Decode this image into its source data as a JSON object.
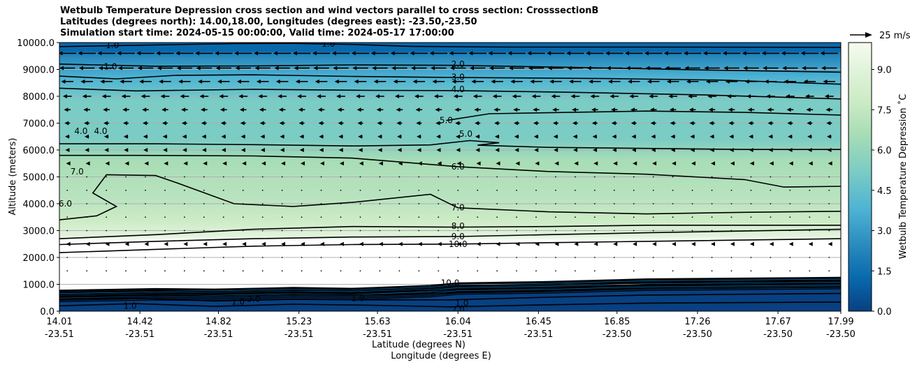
{
  "title": {
    "line1": "Wetbulb Temperature Depression cross section and wind vectors parallel to cross section: CrosssectionB",
    "line2": "Latitudes (degrees north): 14.00,18.00, Longitudes (degrees east): -23.50,-23.50",
    "line3": "Simulation start time: 2024-05-15 00:00:00, Valid time: 2024-05-17 17:00:00"
  },
  "chart_data": {
    "type": "heatmap",
    "title": "Wetbulb Temperature Depression cross section and wind vectors parallel to cross section: CrosssectionB",
    "ylabel": "Altitude (meters)",
    "xlabel": "Latitude (degrees N)",
    "xlabel2": "Longitude (degrees E)",
    "ylim": [
      0,
      10000
    ],
    "xlim": [
      14.01,
      17.99
    ],
    "y_ticks": [
      "0.0",
      "1000.0",
      "2000.0",
      "3000.0",
      "4000.0",
      "5000.0",
      "6000.0",
      "7000.0",
      "8000.0",
      "9000.0",
      "10000.0"
    ],
    "y_tick_values": [
      0,
      1000,
      2000,
      3000,
      4000,
      5000,
      6000,
      7000,
      8000,
      9000,
      10000
    ],
    "x_tick_values": [
      14.01,
      14.42,
      14.82,
      15.23,
      15.63,
      16.04,
      16.45,
      16.85,
      17.26,
      17.67,
      17.99
    ],
    "x_ticks_lat": [
      "14.01",
      "14.42",
      "14.82",
      "15.23",
      "15.63",
      "16.04",
      "16.45",
      "16.85",
      "17.26",
      "17.67",
      "17.99"
    ],
    "x_ticks_lon": [
      "-23.51",
      "-23.51",
      "-23.51",
      "-23.51",
      "-23.51",
      "-23.51",
      "-23.51",
      "-23.50",
      "-23.50",
      "-23.50",
      "-23.50"
    ],
    "grid": "horizontal",
    "colorbar": {
      "label": "Wetbulb Temperature Depression ˚C",
      "range": [
        0.0,
        10.0
      ],
      "ticks": [
        "0.0",
        "1.5",
        "3.0",
        "4.5",
        "6.0",
        "7.5",
        "9.0"
      ],
      "tick_values": [
        0.0,
        1.5,
        3.0,
        4.5,
        6.0,
        7.5,
        9.0
      ],
      "colors": [
        "#084081",
        "#0868ac",
        "#2b8cbe",
        "#4eb3d3",
        "#7bccc4",
        "#a8ddb5",
        "#ccebc5",
        "#e0f3db",
        "#f7fcf0"
      ]
    },
    "vector_key": {
      "label": "25 m/s",
      "value": 25
    },
    "contour_levels": [
      1.0,
      2.0,
      3.0,
      4.0,
      5.0,
      6.0,
      7.0,
      8.0,
      9.0,
      10.0
    ],
    "contour_labels": [
      {
        "text": "2.0",
        "lat": 16.04,
        "alt": 9200
      },
      {
        "text": "3.0",
        "lat": 16.04,
        "alt": 8720
      },
      {
        "text": "4.0",
        "lat": 16.04,
        "alt": 8260
      },
      {
        "text": "5.0",
        "lat": 15.98,
        "alt": 7100
      },
      {
        "text": "5.0",
        "lat": 16.08,
        "alt": 6600
      },
      {
        "text": "6.0",
        "lat": 16.04,
        "alt": 5380
      },
      {
        "text": "7.0",
        "lat": 16.04,
        "alt": 3860
      },
      {
        "text": "8.0",
        "lat": 16.04,
        "alt": 3170
      },
      {
        "text": "9.0",
        "lat": 16.04,
        "alt": 2780
      },
      {
        "text": "10.0",
        "lat": 16.04,
        "alt": 2500
      },
      {
        "text": "4.0",
        "lat": 14.12,
        "alt": 6700
      },
      {
        "text": "4.0",
        "lat": 14.22,
        "alt": 6700
      },
      {
        "text": "1.0",
        "lat": 14.28,
        "alt": 9900
      },
      {
        "text": "1.0",
        "lat": 14.27,
        "alt": 9100
      },
      {
        "text": "1.0",
        "lat": 15.38,
        "alt": 9950
      },
      {
        "text": "7.0",
        "lat": 14.1,
        "alt": 5200
      },
      {
        "text": "6.0",
        "lat": 14.04,
        "alt": 4000
      },
      {
        "text": "10.0",
        "lat": 16.0,
        "alt": 1050
      },
      {
        "text": "1.0",
        "lat": 14.37,
        "alt": 200
      },
      {
        "text": "1.0",
        "lat": 14.92,
        "alt": 350
      },
      {
        "text": "3.0",
        "lat": 15.0,
        "alt": 450
      },
      {
        "text": "1.0",
        "lat": 15.53,
        "alt": 480
      },
      {
        "text": "1.0",
        "lat": 16.06,
        "alt": 300
      },
      {
        "text": "2.0",
        "lat": 16.04,
        "alt": 50
      }
    ],
    "contour_lines": [
      {
        "level": "1.0",
        "points": [
          [
            14.01,
            9850
          ],
          [
            14.4,
            9900
          ],
          [
            14.9,
            9960
          ],
          [
            15.2,
            9970
          ],
          [
            15.5,
            9930
          ],
          [
            15.8,
            9860
          ],
          [
            16.3,
            9830
          ],
          [
            17.0,
            9830
          ],
          [
            17.99,
            9820
          ]
        ]
      },
      {
        "level": "2.0",
        "points": [
          [
            14.01,
            9200
          ],
          [
            14.5,
            9120
          ],
          [
            15.0,
            9130
          ],
          [
            15.5,
            9170
          ],
          [
            16.04,
            9150
          ],
          [
            16.6,
            9080
          ],
          [
            17.3,
            8980
          ],
          [
            17.99,
            8900
          ]
        ]
      },
      {
        "level": "3.0",
        "points": [
          [
            14.01,
            8750
          ],
          [
            14.3,
            8650
          ],
          [
            14.6,
            8780
          ],
          [
            15.0,
            8800
          ],
          [
            15.5,
            8740
          ],
          [
            16.04,
            8700
          ],
          [
            16.8,
            8660
          ],
          [
            17.4,
            8600
          ],
          [
            17.99,
            8450
          ]
        ]
      },
      {
        "level": "4.0",
        "points": [
          [
            14.01,
            8300
          ],
          [
            14.4,
            8200
          ],
          [
            15.0,
            8260
          ],
          [
            15.6,
            8220
          ],
          [
            16.04,
            8210
          ],
          [
            16.6,
            8150
          ],
          [
            17.3,
            8050
          ],
          [
            17.99,
            7900
          ]
        ]
      },
      {
        "level": "5.0",
        "points": [
          [
            15.98,
            7100
          ],
          [
            16.2,
            7350
          ],
          [
            16.6,
            7400
          ],
          [
            17.0,
            7450
          ],
          [
            17.5,
            7400
          ],
          [
            17.99,
            7300
          ]
        ]
      },
      {
        "level": "5.0",
        "points": [
          [
            14.01,
            6230
          ],
          [
            14.5,
            6230
          ],
          [
            15.0,
            6200
          ],
          [
            15.5,
            6150
          ],
          [
            15.9,
            6190
          ],
          [
            16.1,
            6350
          ],
          [
            16.25,
            6270
          ],
          [
            16.14,
            6180
          ],
          [
            16.5,
            6100
          ],
          [
            17.0,
            6060
          ],
          [
            17.5,
            6020
          ],
          [
            17.99,
            6020
          ]
        ]
      },
      {
        "level": "6.0",
        "points": [
          [
            14.01,
            5800
          ],
          [
            14.4,
            5800
          ],
          [
            15.0,
            5780
          ],
          [
            15.5,
            5700
          ],
          [
            16.04,
            5380
          ],
          [
            16.5,
            5200
          ],
          [
            17.0,
            5100
          ],
          [
            17.5,
            4900
          ],
          [
            17.7,
            4620
          ],
          [
            17.99,
            4650
          ]
        ]
      },
      {
        "level": "7.0",
        "points": [
          [
            14.01,
            3400
          ],
          [
            14.2,
            3550
          ],
          [
            14.3,
            3900
          ],
          [
            14.18,
            4400
          ],
          [
            14.25,
            5080
          ],
          [
            14.5,
            5050
          ],
          [
            14.6,
            4800
          ],
          [
            14.9,
            4000
          ],
          [
            15.2,
            3900
          ],
          [
            15.5,
            4050
          ],
          [
            15.9,
            4350
          ],
          [
            16.04,
            3850
          ],
          [
            16.5,
            3700
          ],
          [
            17.0,
            3620
          ],
          [
            17.5,
            3680
          ],
          [
            17.99,
            3720
          ]
        ]
      },
      {
        "level": "8.0",
        "points": [
          [
            14.01,
            2700
          ],
          [
            14.5,
            2850
          ],
          [
            15.0,
            3050
          ],
          [
            15.5,
            3150
          ],
          [
            16.04,
            3130
          ],
          [
            16.5,
            3150
          ],
          [
            17.0,
            3200
          ],
          [
            17.99,
            3200
          ]
        ]
      },
      {
        "level": "9.0",
        "points": [
          [
            14.01,
            2480
          ],
          [
            14.5,
            2600
          ],
          [
            15.0,
            2700
          ],
          [
            15.5,
            2760
          ],
          [
            16.04,
            2780
          ],
          [
            16.5,
            2850
          ],
          [
            17.0,
            2920
          ],
          [
            17.99,
            3050
          ]
        ]
      },
      {
        "level": "10.0",
        "points": [
          [
            14.01,
            2180
          ],
          [
            14.5,
            2300
          ],
          [
            15.0,
            2420
          ],
          [
            15.5,
            2480
          ],
          [
            16.04,
            2500
          ],
          [
            16.5,
            2550
          ],
          [
            17.0,
            2600
          ],
          [
            17.99,
            2700
          ]
        ]
      }
    ],
    "low_contours": [
      {
        "level": "10.0",
        "points": [
          [
            14.01,
            780
          ],
          [
            14.5,
            840
          ],
          [
            14.8,
            820
          ],
          [
            15.2,
            880
          ],
          [
            15.5,
            850
          ],
          [
            15.9,
            960
          ],
          [
            16.04,
            1050
          ],
          [
            16.5,
            1100
          ],
          [
            17.0,
            1200
          ],
          [
            17.99,
            1260
          ]
        ]
      },
      {
        "level": "8.0",
        "points": [
          [
            14.01,
            700
          ],
          [
            14.5,
            760
          ],
          [
            14.8,
            720
          ],
          [
            15.2,
            780
          ],
          [
            15.5,
            760
          ],
          [
            15.9,
            860
          ],
          [
            16.04,
            940
          ],
          [
            16.5,
            1000
          ],
          [
            17.0,
            1080
          ],
          [
            17.99,
            1140
          ]
        ]
      },
      {
        "level": "6.0",
        "points": [
          [
            14.01,
            620
          ],
          [
            14.5,
            680
          ],
          [
            14.8,
            640
          ],
          [
            15.2,
            700
          ],
          [
            15.5,
            680
          ],
          [
            15.9,
            760
          ],
          [
            16.04,
            820
          ],
          [
            16.5,
            880
          ],
          [
            17.0,
            960
          ],
          [
            17.99,
            1020
          ]
        ]
      },
      {
        "level": "4.0",
        "points": [
          [
            14.01,
            540
          ],
          [
            14.5,
            600
          ],
          [
            14.8,
            560
          ],
          [
            15.2,
            620
          ],
          [
            15.5,
            600
          ],
          [
            15.9,
            660
          ],
          [
            16.04,
            700
          ],
          [
            16.5,
            760
          ],
          [
            17.0,
            840
          ],
          [
            17.99,
            900
          ]
        ]
      },
      {
        "level": "2.0",
        "points": [
          [
            14.01,
            420
          ],
          [
            14.4,
            480
          ],
          [
            14.8,
            380
          ],
          [
            15.2,
            440
          ],
          [
            15.6,
            420
          ],
          [
            16.0,
            420
          ],
          [
            16.5,
            520
          ],
          [
            17.0,
            600
          ],
          [
            17.99,
            660
          ]
        ]
      },
      {
        "level": "1.0",
        "points": [
          [
            14.01,
            200
          ],
          [
            14.4,
            280
          ],
          [
            14.8,
            180
          ],
          [
            15.2,
            260
          ],
          [
            15.6,
            220
          ],
          [
            16.0,
            160
          ],
          [
            16.5,
            240
          ],
          [
            17.0,
            300
          ],
          [
            17.99,
            340
          ]
        ]
      }
    ],
    "wind_vectors": [
      {
        "alt": 9600,
        "u": -3.2
      },
      {
        "alt": 9050,
        "u": -2.8
      },
      {
        "alt": 8550,
        "u": -2.2
      },
      {
        "alt": 8000,
        "u": -1.6
      },
      {
        "alt": 7500,
        "u": -1.2
      },
      {
        "alt": 7000,
        "u": -1.0
      },
      {
        "alt": 6500,
        "u": -0.8
      },
      {
        "alt": 6000,
        "u": -0.7
      },
      {
        "alt": 5500,
        "u": -0.4
      },
      {
        "alt": 5000,
        "u": -0.15
      },
      {
        "alt": 4500,
        "u": -0.1
      },
      {
        "alt": 4000,
        "u": -0.05
      },
      {
        "alt": 3500,
        "u": -0.05
      },
      {
        "alt": 3000,
        "u": -0.15
      },
      {
        "alt": 2500,
        "u": -0.4
      },
      {
        "alt": 2000,
        "u": -0.05
      },
      {
        "alt": 1500,
        "u": -0.05
      }
    ]
  }
}
